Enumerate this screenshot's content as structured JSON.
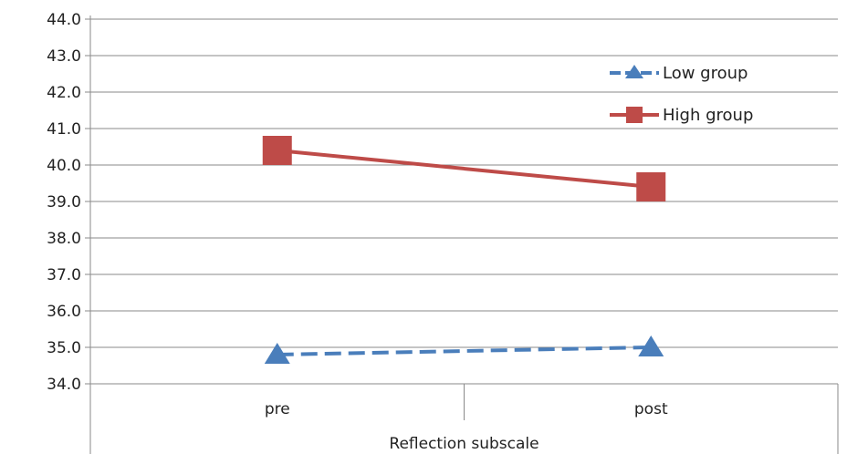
{
  "chart_data": {
    "type": "line",
    "title": "",
    "xlabel": "",
    "ylabel": "",
    "categories": [
      "pre",
      "post"
    ],
    "group_label": "Reflection subscale",
    "ylim": [
      34.0,
      44.0
    ],
    "yticks": [
      "34.0",
      "35.0",
      "36.0",
      "37.0",
      "38.0",
      "39.0",
      "40.0",
      "41.0",
      "42.0",
      "43.0",
      "44.0"
    ],
    "grid": true,
    "legend_position": "top-right",
    "series": [
      {
        "name": "Low group",
        "values": [
          34.8,
          35.0
        ],
        "color": "#4a7ebb",
        "marker": "triangle",
        "dash": "dashed"
      },
      {
        "name": "High group",
        "values": [
          40.4,
          39.4
        ],
        "color": "#be4b48",
        "marker": "square",
        "dash": "solid"
      }
    ]
  }
}
